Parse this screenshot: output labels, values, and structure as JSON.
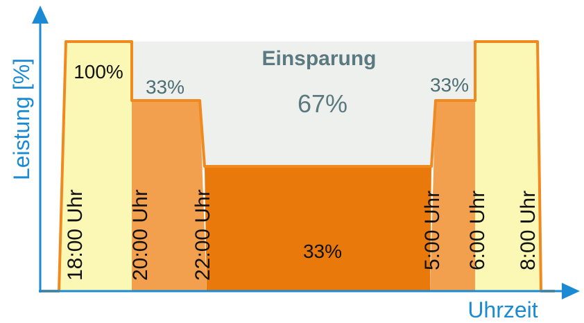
{
  "axes": {
    "y_label": "Leistung [%]",
    "x_label": "Uhrzeit"
  },
  "savings": {
    "title": "Einsparung",
    "value": "67%"
  },
  "levels": {
    "full": "100%",
    "reduced_left": "33%",
    "reduced_right": "33%",
    "night": "33%"
  },
  "times": [
    "18:00 Uhr",
    "20:00 Uhr",
    "22:00 Uhr",
    "5:00 Uhr",
    "6:00 Uhr",
    "8:00 Uhr"
  ]
}
